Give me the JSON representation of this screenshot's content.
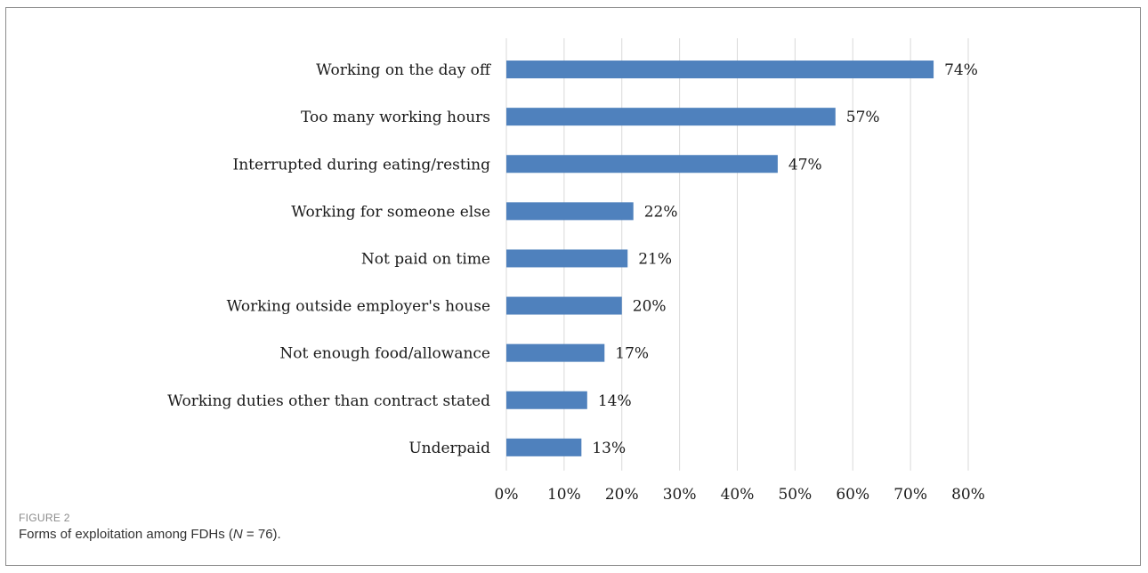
{
  "figure": {
    "label": "FIGURE 2",
    "caption": "Forms of exploitation among FDHs (N = 76)."
  },
  "chart_data": {
    "type": "bar",
    "orientation": "horizontal",
    "title": "",
    "xlabel": "",
    "ylabel": "",
    "categories": [
      "Working on the day off",
      "Too many working hours",
      "Interrupted during eating/resting",
      "Working for someone else",
      "Not paid on time",
      "Working outside employer's house",
      "Not enough food/allowance",
      "Working duties other than contract stated",
      "Underpaid"
    ],
    "values": [
      74,
      57,
      47,
      22,
      21,
      20,
      17,
      14,
      13
    ],
    "value_labels": [
      "74%",
      "57%",
      "47%",
      "22%",
      "21%",
      "20%",
      "17%",
      "14%",
      "13%"
    ],
    "xlim": [
      0,
      80
    ],
    "x_ticks": [
      "0%",
      "10%",
      "20%",
      "30%",
      "40%",
      "50%",
      "60%",
      "70%",
      "80%"
    ],
    "grid": "vertical",
    "legend": "none",
    "bar_color": "#4f81bd",
    "grid_color": "#d9d9d9"
  }
}
